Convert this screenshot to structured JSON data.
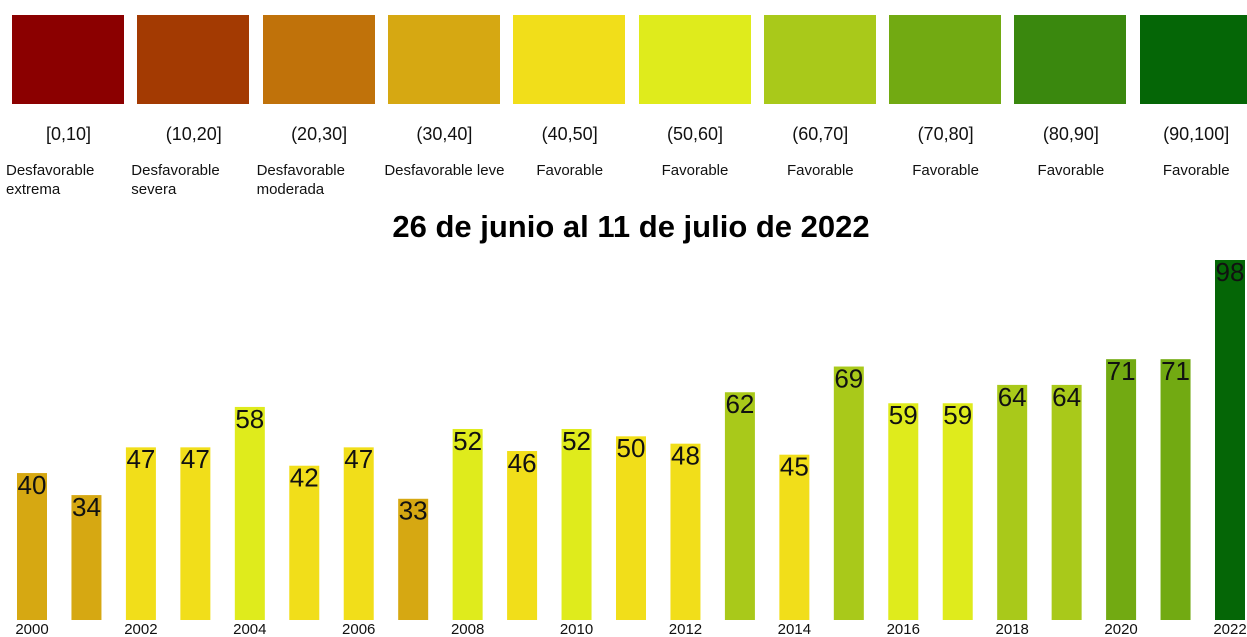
{
  "chart_data": {
    "type": "bar",
    "title": "26 de junio al 11 de julio de 2022",
    "legend": [
      {
        "range": "[0,10]",
        "label": "Desfavorable extrema",
        "color": "#8b0000"
      },
      {
        "range": "(10,20]",
        "label": "Desfavorable severa",
        "color": "#a33a02"
      },
      {
        "range": "(20,30]",
        "label": "Desfavorable moderada",
        "color": "#c0720a"
      },
      {
        "range": "(30,40]",
        "label": "Desfavorable leve",
        "color": "#d6a812"
      },
      {
        "range": "(40,50]",
        "label": "Favorable",
        "color": "#f1de1a"
      },
      {
        "range": "(50,60]",
        "label": "Favorable",
        "color": "#dfeb1c"
      },
      {
        "range": "(60,70]",
        "label": "Favorable",
        "color": "#a9c91a"
      },
      {
        "range": "(70,80]",
        "label": "Favorable",
        "color": "#72aa12"
      },
      {
        "range": "(80,90]",
        "label": "Favorable",
        "color": "#3a880e"
      },
      {
        "range": "(90,100]",
        "label": "Favorable",
        "color": "#056606"
      }
    ],
    "categories": [
      "2000",
      null,
      "2002",
      null,
      "2004",
      null,
      "2006",
      null,
      "2008",
      null,
      "2010",
      null,
      "2012",
      null,
      "2014",
      null,
      "2016",
      null,
      "2018",
      null,
      "2020",
      null,
      "2022"
    ],
    "values": [
      40,
      34,
      47,
      47,
      58,
      42,
      47,
      33,
      52,
      46,
      52,
      50,
      48,
      62,
      45,
      69,
      59,
      59,
      64,
      64,
      71,
      71,
      98
    ],
    "colors": [
      "#d6a812",
      "#d6a812",
      "#f1de1a",
      "#f1de1a",
      "#dfeb1c",
      "#f1de1a",
      "#f1de1a",
      "#d6a812",
      "#dfeb1c",
      "#f1de1a",
      "#dfeb1c",
      "#f1de1a",
      "#f1de1a",
      "#a9c91a",
      "#f1de1a",
      "#a9c91a",
      "#dfeb1c",
      "#dfeb1c",
      "#a9c91a",
      "#a9c91a",
      "#72aa12",
      "#72aa12",
      "#056606"
    ]
  }
}
